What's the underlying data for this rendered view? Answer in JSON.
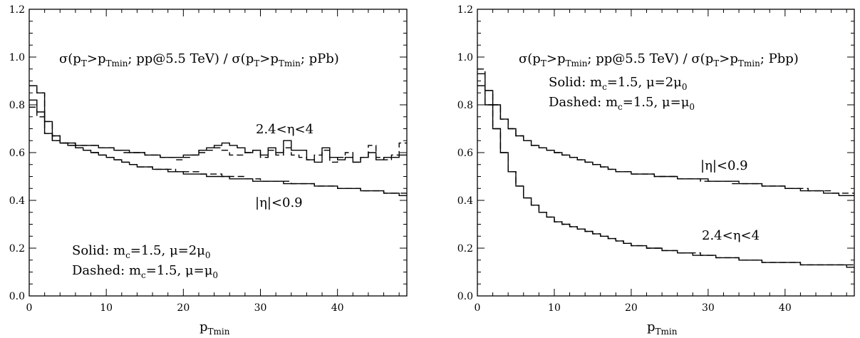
{
  "chart_data": [
    {
      "type": "line",
      "panel": "left",
      "title": "σ(pT>pTmin; pp@5.5 TeV) / σ(pT>pTmin; pPb)",
      "title_parts": {
        "a": "σ(p",
        "b": "T",
        "c": ">p",
        "d": "Tmin",
        "e": "; pp@5.5 TeV) / σ(p",
        "f": "T",
        "g": ">p",
        "h": "Tmin",
        "i": "; pPb)"
      },
      "xlabel": "pTmin",
      "xlabel_parts": {
        "main": "p",
        "sub": "Tmin"
      },
      "xlim": [
        0,
        49
      ],
      "ylim": [
        0,
        1.2
      ],
      "x_ticks": [
        "0",
        "10",
        "20",
        "30",
        "40"
      ],
      "y_ticks": [
        "0.0",
        "0.2",
        "0.4",
        "0.6",
        "0.8",
        "1.0",
        "1.2"
      ],
      "annotations": {
        "fwd_label": "2.4<η<4",
        "mid_label": "|η|<0.9",
        "solid_text": {
          "a": "Solid:  m",
          "b": "c",
          "c": "=1.5,  μ=2μ",
          "d": "0"
        },
        "dashed_text": {
          "a": "Dashed:  m",
          "b": "c",
          "c": "=1.5,  μ=μ",
          "d": "0"
        }
      },
      "series": [
        {
          "style": "solid",
          "label": "2.4<η<4",
          "step": 1,
          "values": [
            0.82,
            0.77,
            0.68,
            0.65,
            0.64,
            0.64,
            0.63,
            0.63,
            0.63,
            0.62,
            0.62,
            0.61,
            0.61,
            0.6,
            0.6,
            0.59,
            0.59,
            0.58,
            0.58,
            0.58,
            0.59,
            0.59,
            0.61,
            0.62,
            0.63,
            0.64,
            0.63,
            0.62,
            0.6,
            0.61,
            0.59,
            0.62,
            0.6,
            0.65,
            0.61,
            0.61,
            0.57,
            0.56,
            0.62,
            0.58,
            0.57,
            0.58,
            0.56,
            0.58,
            0.6,
            0.57,
            0.58,
            0.58,
            0.59
          ]
        },
        {
          "style": "dashed",
          "label": "2.4<η<4",
          "step": 1,
          "values": [
            0.79,
            0.75,
            0.68,
            0.65,
            0.64,
            0.64,
            0.63,
            0.63,
            0.63,
            0.62,
            0.62,
            0.61,
            0.6,
            0.6,
            0.6,
            0.59,
            0.59,
            0.58,
            0.58,
            0.57,
            0.58,
            0.59,
            0.6,
            0.61,
            0.62,
            0.61,
            0.59,
            0.59,
            0.6,
            0.61,
            0.58,
            0.61,
            0.59,
            0.62,
            0.59,
            0.58,
            0.57,
            0.59,
            0.61,
            0.56,
            0.58,
            0.6,
            0.56,
            0.58,
            0.63,
            0.58,
            0.57,
            0.59,
            0.64
          ]
        },
        {
          "style": "solid",
          "label": "|η|<0.9",
          "step": 1,
          "values": [
            0.88,
            0.85,
            0.73,
            0.67,
            0.64,
            0.63,
            0.62,
            0.61,
            0.6,
            0.59,
            0.58,
            0.57,
            0.56,
            0.55,
            0.54,
            0.54,
            0.53,
            0.53,
            0.52,
            0.52,
            0.51,
            0.51,
            0.51,
            0.5,
            0.5,
            0.5,
            0.49,
            0.49,
            0.49,
            0.48,
            0.48,
            0.48,
            0.48,
            0.47,
            0.47,
            0.47,
            0.47,
            0.46,
            0.46,
            0.46,
            0.45,
            0.45,
            0.45,
            0.44,
            0.44,
            0.44,
            0.43,
            0.43,
            0.42
          ]
        },
        {
          "style": "dashed",
          "label": "|η|<0.9",
          "step": 1,
          "values": [
            0.88,
            0.85,
            0.73,
            0.67,
            0.64,
            0.63,
            0.62,
            0.61,
            0.6,
            0.59,
            0.58,
            0.57,
            0.56,
            0.55,
            0.54,
            0.54,
            0.53,
            0.53,
            0.53,
            0.52,
            0.52,
            0.52,
            0.51,
            0.51,
            0.51,
            0.5,
            0.5,
            0.5,
            0.49,
            0.49,
            0.48,
            0.48,
            0.48,
            0.48,
            0.47,
            0.47,
            0.47,
            0.46,
            0.46,
            0.46,
            0.45,
            0.45,
            0.45,
            0.44,
            0.44,
            0.44,
            0.43,
            0.43,
            0.43
          ]
        }
      ]
    },
    {
      "type": "line",
      "panel": "right",
      "title": "σ(pT>pTmin; pp@5.5 TeV) / σ(pT>pTmin; Pbp)",
      "title_parts": {
        "a": "σ(p",
        "b": "T",
        "c": ">p",
        "d": "Tmin",
        "e": "; pp@5.5 TeV) / σ(p",
        "f": "T",
        "g": ">p",
        "h": "Tmin",
        "i": "; Pbp)"
      },
      "xlabel": "pTmin",
      "xlabel_parts": {
        "main": "p",
        "sub": "Tmin"
      },
      "xlim": [
        0,
        49
      ],
      "ylim": [
        0,
        1.2
      ],
      "x_ticks": [
        "0",
        "10",
        "20",
        "30",
        "40"
      ],
      "y_ticks": [
        "0.0",
        "0.2",
        "0.4",
        "0.6",
        "0.8",
        "1.0",
        "1.2"
      ],
      "annotations": {
        "mid_label": "|η|<0.9",
        "fwd_label": "2.4<η<4",
        "solid_text": {
          "a": "Solid:  m",
          "b": "c",
          "c": "=1.5,  μ=2μ",
          "d": "0"
        },
        "dashed_text": {
          "a": "Dashed:  m",
          "b": "c",
          "c": "=1.5,  μ=μ",
          "d": "0"
        }
      },
      "series": [
        {
          "style": "solid",
          "label": "|η|<0.9",
          "step": 1,
          "values": [
            0.93,
            0.86,
            0.8,
            0.74,
            0.7,
            0.67,
            0.65,
            0.63,
            0.62,
            0.61,
            0.6,
            0.59,
            0.58,
            0.57,
            0.56,
            0.55,
            0.54,
            0.53,
            0.52,
            0.52,
            0.51,
            0.51,
            0.51,
            0.5,
            0.5,
            0.5,
            0.49,
            0.49,
            0.49,
            0.49,
            0.48,
            0.48,
            0.48,
            0.48,
            0.47,
            0.47,
            0.47,
            0.46,
            0.46,
            0.46,
            0.45,
            0.45,
            0.44,
            0.44,
            0.44,
            0.43,
            0.43,
            0.42,
            0.42
          ]
        },
        {
          "style": "dashed",
          "label": "|η|<0.9",
          "step": 1,
          "values": [
            0.95,
            0.86,
            0.8,
            0.74,
            0.7,
            0.67,
            0.65,
            0.63,
            0.62,
            0.61,
            0.6,
            0.59,
            0.58,
            0.57,
            0.56,
            0.55,
            0.54,
            0.53,
            0.52,
            0.52,
            0.51,
            0.51,
            0.51,
            0.5,
            0.5,
            0.5,
            0.49,
            0.49,
            0.49,
            0.48,
            0.48,
            0.48,
            0.48,
            0.47,
            0.47,
            0.47,
            0.47,
            0.46,
            0.46,
            0.46,
            0.45,
            0.45,
            0.45,
            0.44,
            0.44,
            0.44,
            0.43,
            0.43,
            0.43
          ]
        },
        {
          "style": "solid",
          "label": "2.4<η<4",
          "step": 1,
          "values": [
            0.88,
            0.8,
            0.7,
            0.6,
            0.52,
            0.46,
            0.41,
            0.38,
            0.35,
            0.33,
            0.31,
            0.3,
            0.29,
            0.28,
            0.27,
            0.26,
            0.25,
            0.24,
            0.23,
            0.22,
            0.21,
            0.21,
            0.2,
            0.2,
            0.19,
            0.19,
            0.18,
            0.18,
            0.17,
            0.17,
            0.17,
            0.16,
            0.16,
            0.16,
            0.15,
            0.15,
            0.15,
            0.14,
            0.14,
            0.14,
            0.14,
            0.14,
            0.13,
            0.13,
            0.13,
            0.13,
            0.13,
            0.13,
            0.12
          ]
        },
        {
          "style": "dashed",
          "label": "2.4<η<4",
          "step": 1,
          "values": [
            0.88,
            0.8,
            0.7,
            0.6,
            0.52,
            0.46,
            0.41,
            0.38,
            0.35,
            0.33,
            0.31,
            0.3,
            0.29,
            0.28,
            0.27,
            0.26,
            0.25,
            0.24,
            0.23,
            0.22,
            0.21,
            0.21,
            0.2,
            0.2,
            0.19,
            0.19,
            0.18,
            0.18,
            0.18,
            0.17,
            0.17,
            0.16,
            0.16,
            0.16,
            0.15,
            0.15,
            0.15,
            0.14,
            0.14,
            0.14,
            0.14,
            0.14,
            0.13,
            0.13,
            0.13,
            0.13,
            0.13,
            0.13,
            0.13
          ]
        }
      ]
    }
  ]
}
